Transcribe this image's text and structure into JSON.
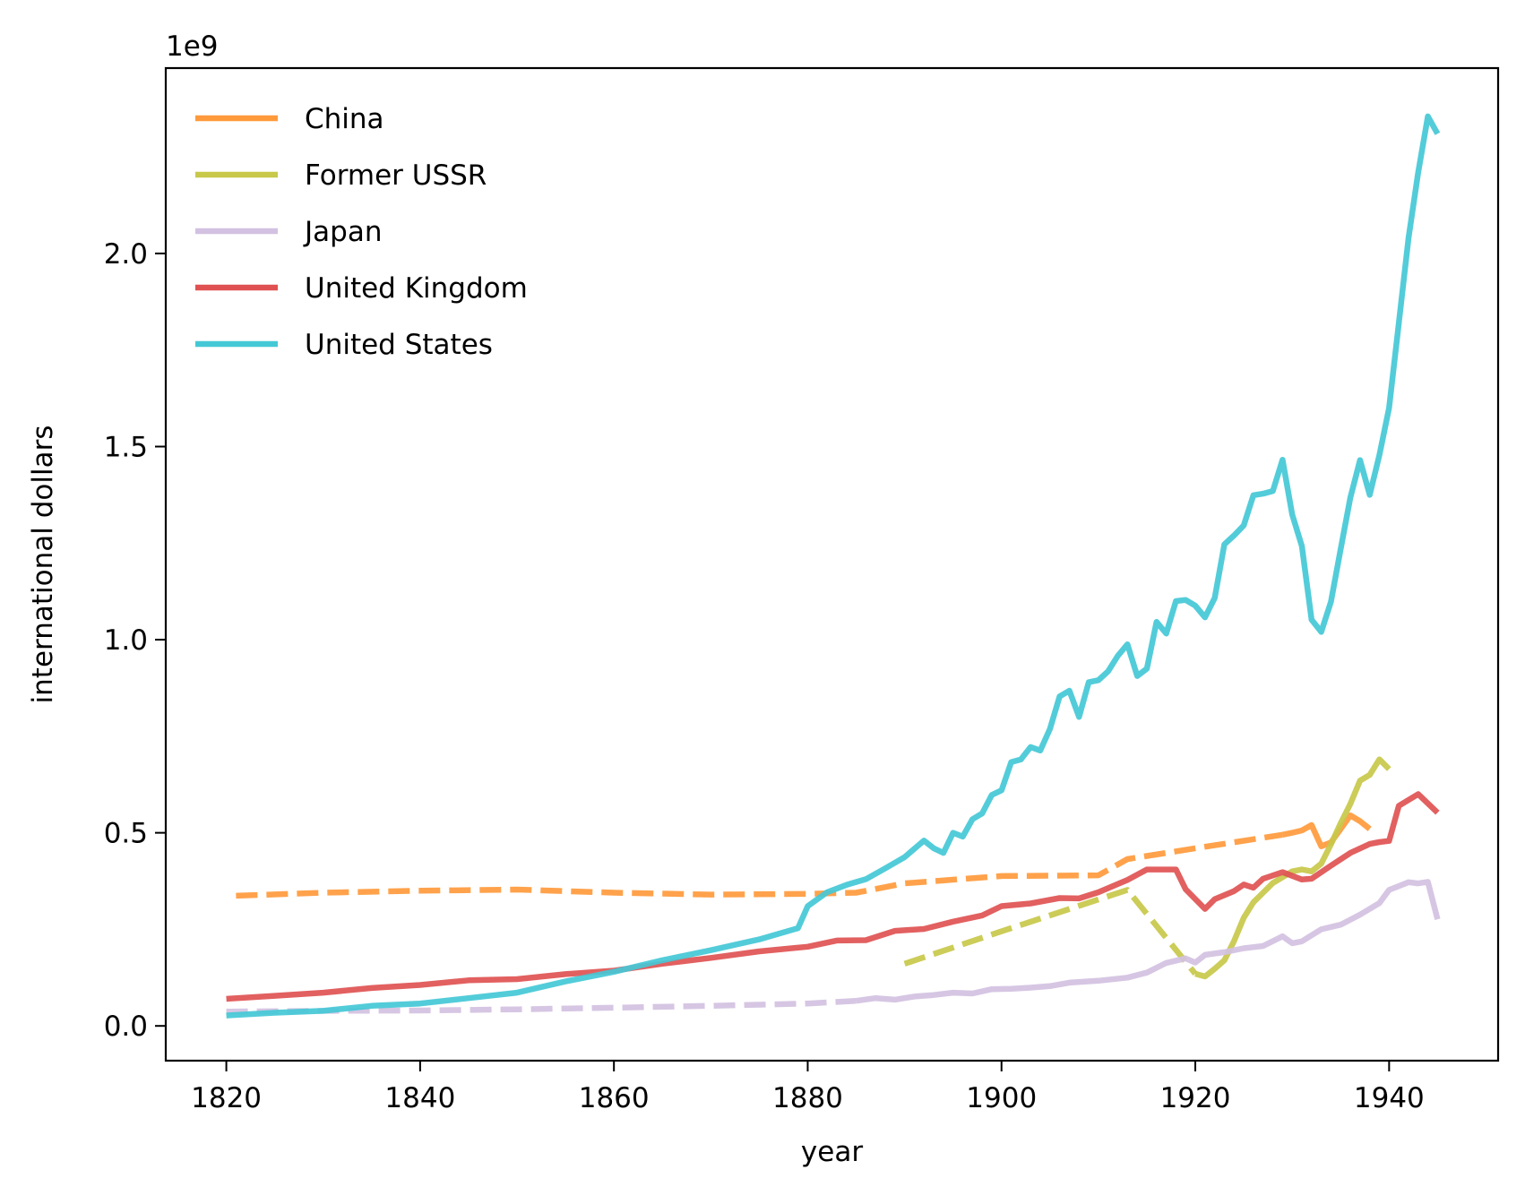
{
  "chart_data": {
    "type": "line",
    "title": "",
    "xlabel": "year",
    "ylabel": "international dollars",
    "offset_text": "1e9",
    "y_scale": 1000000000.0,
    "xlim": [
      1813.75,
      1951.25
    ],
    "ylim": [
      -0.09,
      2.48
    ],
    "xticks": [
      1820,
      1840,
      1860,
      1880,
      1900,
      1920,
      1940
    ],
    "xtick_labels": [
      "1820",
      "1840",
      "1860",
      "1880",
      "1900",
      "1920",
      "1940"
    ],
    "yticks": [
      0.0,
      0.5,
      1.0,
      1.5,
      2.0
    ],
    "ytick_labels": [
      "0.0",
      "0.5",
      "1.0",
      "1.5",
      "2.0"
    ],
    "grid": false,
    "legend_position": "top-left",
    "series": [
      {
        "name": "China",
        "color": "#ff9a3c",
        "segments": [
          {
            "style": "dashed",
            "x": [
              1821,
              1830,
              1840,
              1850,
              1860,
              1870,
              1880,
              1885,
              1890,
              1900,
              1910,
              1913,
              1920,
              1929
            ],
            "y": [
              0.337,
              0.345,
              0.35,
              0.353,
              0.345,
              0.34,
              0.342,
              0.345,
              0.369,
              0.388,
              0.39,
              0.432,
              0.46,
              0.495
            ]
          },
          {
            "style": "solid",
            "x": [
              1929,
              1930,
              1931,
              1932,
              1933,
              1934,
              1935,
              1936,
              1937,
              1938
            ],
            "y": [
              0.495,
              0.5,
              0.506,
              0.52,
              0.465,
              0.475,
              0.51,
              0.545,
              0.53,
              0.51
            ]
          }
        ]
      },
      {
        "name": "Former USSR",
        "color": "#c8c84a",
        "segments": [
          {
            "style": "dashed",
            "x": [
              1890,
              1900,
              1913,
              1920
            ],
            "y": [
              0.161,
              0.245,
              0.352,
              0.135
            ]
          },
          {
            "style": "solid",
            "x": [
              1920,
              1921,
              1922,
              1923,
              1924,
              1925,
              1926,
              1927,
              1928,
              1929,
              1930,
              1931,
              1932,
              1933,
              1934,
              1935,
              1936,
              1937,
              1938,
              1939,
              1940
            ],
            "y": [
              0.135,
              0.128,
              0.148,
              0.17,
              0.22,
              0.28,
              0.32,
              0.345,
              0.37,
              0.385,
              0.4,
              0.405,
              0.4,
              0.42,
              0.47,
              0.525,
              0.575,
              0.635,
              0.65,
              0.69,
              0.665
            ]
          }
        ]
      },
      {
        "name": "Japan",
        "color": "#d3c1e1",
        "segments": [
          {
            "style": "dashed",
            "x": [
              1820,
              1830,
              1840,
              1850,
              1860,
              1870,
              1880,
              1885
            ],
            "y": [
              0.037,
              0.039,
              0.04,
              0.043,
              0.047,
              0.052,
              0.058,
              0.065
            ]
          },
          {
            "style": "solid",
            "x": [
              1885,
              1887,
              1889,
              1891,
              1893,
              1895,
              1897,
              1899,
              1901,
              1903,
              1905,
              1907,
              1910,
              1913,
              1915,
              1917,
              1919,
              1920,
              1921,
              1923,
              1925,
              1927,
              1929,
              1930,
              1931,
              1933,
              1935,
              1937,
              1939,
              1940,
              1941,
              1942,
              1943,
              1944,
              1945
            ],
            "y": [
              0.065,
              0.072,
              0.068,
              0.076,
              0.08,
              0.086,
              0.084,
              0.095,
              0.096,
              0.099,
              0.103,
              0.112,
              0.117,
              0.125,
              0.138,
              0.163,
              0.175,
              0.164,
              0.184,
              0.191,
              0.201,
              0.207,
              0.232,
              0.214,
              0.219,
              0.25,
              0.262,
              0.288,
              0.318,
              0.352,
              0.362,
              0.372,
              0.369,
              0.373,
              0.276
            ]
          }
        ]
      },
      {
        "name": "United Kingdom",
        "color": "#e05252",
        "segments": [
          {
            "style": "solid",
            "x": [
              1820,
              1825,
              1830,
              1835,
              1840,
              1845,
              1850,
              1855,
              1860,
              1865,
              1870,
              1875,
              1880,
              1883,
              1886,
              1889,
              1892,
              1895,
              1898,
              1900,
              1903,
              1906,
              1908,
              1910,
              1913,
              1915,
              1918,
              1919,
              1921,
              1922,
              1924,
              1925,
              1926,
              1927,
              1929,
              1931,
              1932,
              1934,
              1936,
              1938,
              1939,
              1940,
              1941,
              1943,
              1945
            ],
            "y": [
              0.07,
              0.078,
              0.086,
              0.098,
              0.106,
              0.118,
              0.121,
              0.134,
              0.143,
              0.161,
              0.176,
              0.193,
              0.205,
              0.221,
              0.222,
              0.246,
              0.251,
              0.27,
              0.286,
              0.31,
              0.317,
              0.331,
              0.33,
              0.346,
              0.378,
              0.405,
              0.405,
              0.354,
              0.303,
              0.328,
              0.349,
              0.366,
              0.358,
              0.381,
              0.398,
              0.379,
              0.381,
              0.415,
              0.448,
              0.471,
              0.476,
              0.479,
              0.57,
              0.6,
              0.552
            ]
          }
        ]
      },
      {
        "name": "United States",
        "color": "#44c8d6",
        "segments": [
          {
            "style": "solid",
            "x": [
              1820,
              1825,
              1830,
              1835,
              1840,
              1845,
              1850,
              1855,
              1860,
              1865,
              1870,
              1875,
              1879,
              1880,
              1882,
              1884,
              1886,
              1888,
              1890,
              1892,
              1893,
              1894,
              1895,
              1896,
              1897,
              1898,
              1899,
              1900,
              1901,
              1902,
              1903,
              1904,
              1905,
              1906,
              1907,
              1908,
              1909,
              1910,
              1911,
              1912,
              1913,
              1914,
              1915,
              1916,
              1917,
              1918,
              1919,
              1920,
              1921,
              1922,
              1923,
              1924,
              1925,
              1926,
              1927,
              1928,
              1929,
              1930,
              1931,
              1932,
              1933,
              1934,
              1935,
              1936,
              1937,
              1938,
              1939,
              1940,
              1941,
              1942,
              1943,
              1944,
              1945
            ],
            "y": [
              0.027,
              0.034,
              0.039,
              0.052,
              0.058,
              0.072,
              0.086,
              0.115,
              0.14,
              0.17,
              0.196,
              0.224,
              0.253,
              0.31,
              0.346,
              0.365,
              0.38,
              0.408,
              0.437,
              0.48,
              0.46,
              0.448,
              0.5,
              0.49,
              0.535,
              0.55,
              0.598,
              0.61,
              0.683,
              0.69,
              0.722,
              0.713,
              0.769,
              0.853,
              0.868,
              0.8,
              0.89,
              0.895,
              0.918,
              0.958,
              0.988,
              0.906,
              0.925,
              1.046,
              1.016,
              1.1,
              1.103,
              1.088,
              1.058,
              1.108,
              1.247,
              1.27,
              1.296,
              1.374,
              1.378,
              1.385,
              1.466,
              1.324,
              1.242,
              1.052,
              1.02,
              1.098,
              1.235,
              1.368,
              1.465,
              1.375,
              1.478,
              1.6,
              1.82,
              2.04,
              2.21,
              2.355,
              2.31
            ]
          }
        ]
      }
    ]
  }
}
